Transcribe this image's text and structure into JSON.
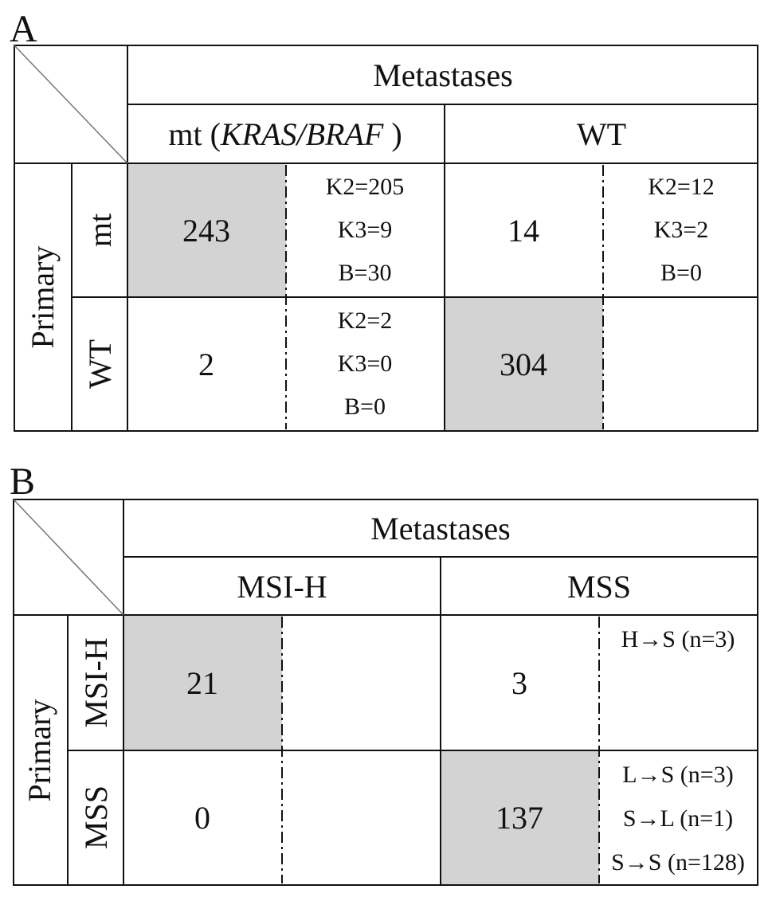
{
  "panel_a": {
    "letter": "A",
    "col_group_header": "Metastases",
    "col_headers": {
      "mt_prefix": "mt (",
      "mt_italic": "KRAS/BRAF",
      "mt_suffix": " )",
      "wt": "WT"
    },
    "row_group_header": "Primary",
    "row_headers": {
      "mt": "mt",
      "wt": "WT"
    },
    "cells": {
      "mt_mt": {
        "value": "243",
        "shaded": true,
        "details": [
          "K2=205",
          "K3=9",
          "B=30"
        ]
      },
      "mt_wt": {
        "value": "14",
        "shaded": false,
        "details": [
          "K2=12",
          "K3=2",
          "B=0"
        ]
      },
      "wt_mt": {
        "value": "2",
        "shaded": false,
        "details": [
          "K2=2",
          "K3=0",
          "B=0"
        ]
      },
      "wt_wt": {
        "value": "304",
        "shaded": true,
        "details": []
      }
    }
  },
  "panel_b": {
    "letter": "B",
    "col_group_header": "Metastases",
    "col_headers": {
      "msih": "MSI-H",
      "mss": "MSS"
    },
    "row_group_header": "Primary",
    "row_headers": {
      "msih": "MSI-H",
      "mss": "MSS"
    },
    "cells": {
      "msih_msih": {
        "value": "21",
        "shaded": true,
        "details": []
      },
      "msih_mss": {
        "value": "3",
        "shaded": false,
        "details": [
          "H→S (n=3)"
        ]
      },
      "mss_msih": {
        "value": "0",
        "shaded": false,
        "details": []
      },
      "mss_mss": {
        "value": "137",
        "shaded": true,
        "details": [
          "L→S (n=3)",
          "S→L (n=1)",
          "S→S (n=128)"
        ]
      }
    }
  },
  "colors": {
    "shade": "#d3d3d3",
    "line": "#111111"
  }
}
